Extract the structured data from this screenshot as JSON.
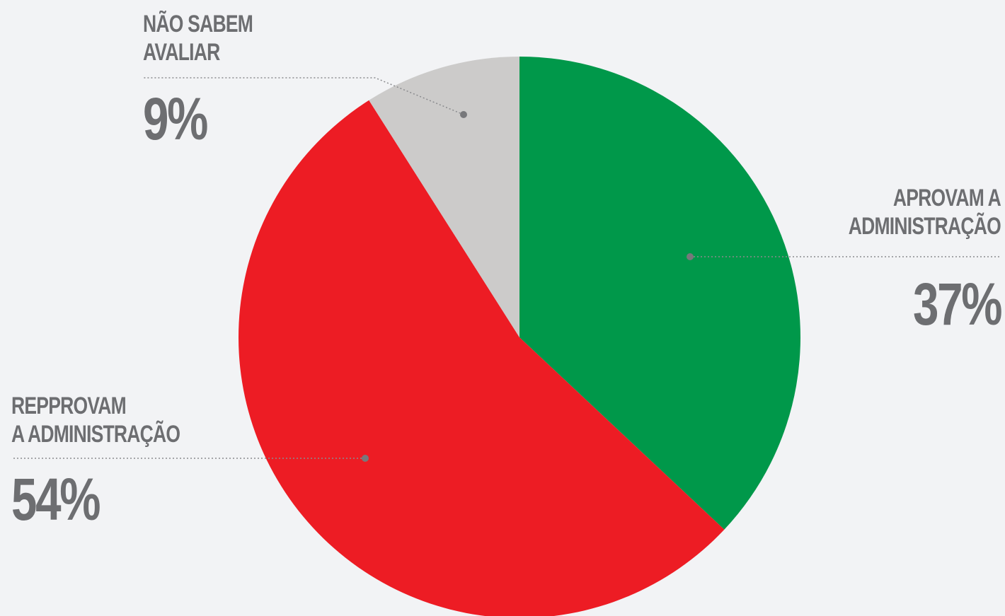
{
  "chart_data": {
    "type": "pie",
    "slices": [
      {
        "label_lines": [
          "APROVAM A",
          "ADMINISTRAÇÃO"
        ],
        "value": 37,
        "value_label": "37%",
        "color": "#00984a"
      },
      {
        "label_lines": [
          "REPPROVAM",
          "A ADMINISTRAÇÃO"
        ],
        "value": 54,
        "value_label": "54%",
        "color": "#ed1c24"
      },
      {
        "label_lines": [
          "NÃO SABEM",
          "AVALIAR"
        ],
        "value": 9,
        "value_label": "9%",
        "color": "#cccbca"
      }
    ],
    "start_angle": "12 o'clock",
    "direction": "clockwise",
    "legend": "none",
    "label_color": "#6d6e71"
  }
}
